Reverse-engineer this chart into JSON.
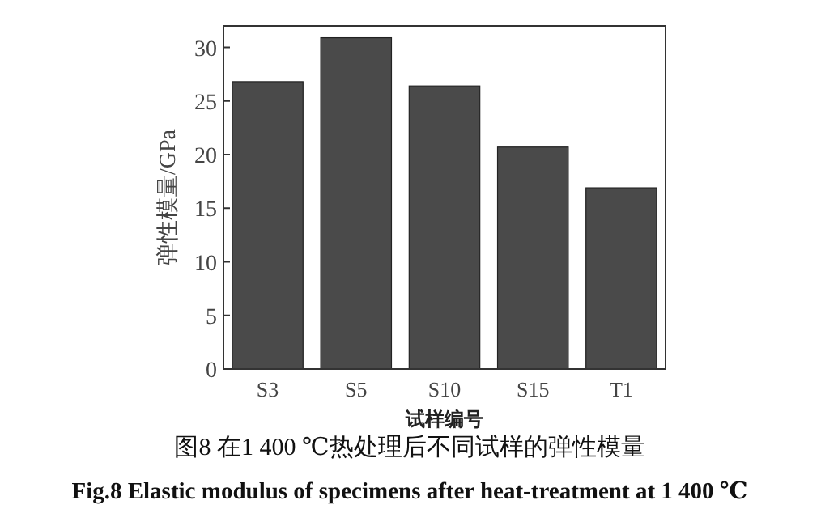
{
  "chart_data": {
    "type": "bar",
    "categories": [
      "S3",
      "S5",
      "S10",
      "S15",
      "T1"
    ],
    "values": [
      26.8,
      30.9,
      26.4,
      20.7,
      16.9
    ],
    "color": "#4a4a4a",
    "ylim": [
      0,
      32
    ],
    "yticks": [
      0,
      5,
      10,
      15,
      20,
      25,
      30
    ],
    "xlabel": "试样编号",
    "ylabel": "弹性模量/GPa",
    "annotations": [
      "图8  在1 400 ℃热处理后不同试样的弹性模量",
      "Fig.8  Elastic modulus of specimens after heat-treatment at 1 400 ℃"
    ]
  }
}
